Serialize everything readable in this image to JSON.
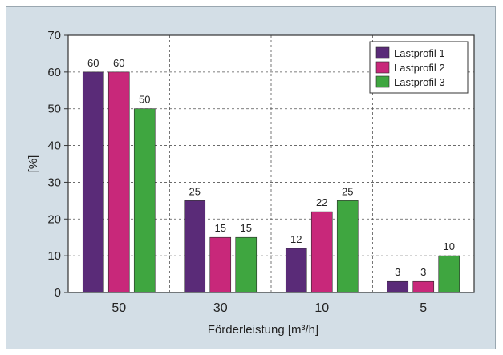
{
  "chart_data": {
    "type": "bar",
    "categories": [
      "50",
      "30",
      "10",
      "5"
    ],
    "series": [
      {
        "name": "Lastprofil 1",
        "values": [
          60,
          25,
          12,
          3
        ],
        "color": "#5a2b78"
      },
      {
        "name": "Lastprofil 2",
        "values": [
          60,
          15,
          22,
          3
        ],
        "color": "#c8287a"
      },
      {
        "name": "Lastprofil 3",
        "values": [
          50,
          15,
          25,
          10
        ],
        "color": "#3fa640"
      }
    ],
    "xlabel": "Förderleistung [m³/h]",
    "ylabel": "[%]",
    "ylim": [
      0,
      70
    ],
    "yticks": [
      0,
      10,
      20,
      30,
      40,
      50,
      60,
      70
    ],
    "grid": true,
    "legend_position": "top-right",
    "colors": {
      "panel_background": "#d3dee6",
      "plot_background": "#ffffff",
      "grid": "#555555"
    }
  }
}
